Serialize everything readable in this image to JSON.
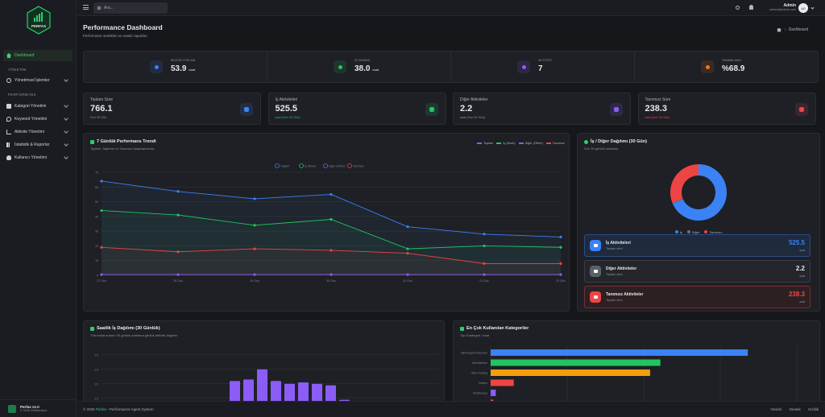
{
  "brand": {
    "logo_text": "PERFAS",
    "version": "Perfas v1.0",
    "copyright": "© 2025 4Dimension"
  },
  "colors": {
    "accent": "#2ecc71",
    "blue": "#3b82f6",
    "green": "#22c55e",
    "purple": "#8b5cf6",
    "red": "#ef4444",
    "orange": "#f59e0b"
  },
  "sidebar": {
    "dashboard": "Dashboard",
    "sections": [
      {
        "label": "YÖNETİM",
        "items": [
          {
            "label": "Yönetimsel İşlemler"
          }
        ]
      },
      {
        "label": "PERFORMANS",
        "items": [
          {
            "label": "Kategori Yönetimi"
          },
          {
            "label": "Keyword Yönetimi"
          },
          {
            "label": "Aktivite Yönetimi"
          },
          {
            "label": "İstatistik & Raporlar"
          },
          {
            "label": "Kullanıcı Yönetimi"
          }
        ]
      }
    ]
  },
  "topbar": {
    "search_placeholder": "Ara...",
    "user_name": "Admin",
    "user_email": "admin@admin.com",
    "avatar": "AD"
  },
  "header": {
    "title": "Performance Dashboard",
    "subtitle": "Performans metrikleri ve analiz raporları",
    "breadcrumb": "Dashboard"
  },
  "kpis": [
    {
      "label": "BUGÜN TOPLAM",
      "value": "53.9",
      "unit": "saat",
      "color": "#3b82f6",
      "icon": "clock-icon"
    },
    {
      "label": "İŞ ZAMANI",
      "value": "38.0",
      "unit": "saat",
      "color": "#22c55e",
      "icon": "check-icon"
    },
    {
      "label": "AKTİVİTE",
      "value": "7",
      "unit": "",
      "color": "#8b5cf6",
      "icon": "pulse-icon"
    },
    {
      "label": "TAMAMLAMA",
      "value": "%68.9",
      "unit": "",
      "color": "#f97316",
      "icon": "percent-icon"
    }
  ],
  "stats": [
    {
      "label": "Toplam Süre",
      "value": "766.1",
      "sub": "Son 30 Gün",
      "sub_color": "#8e949c",
      "color": "#3b82f6",
      "icon": "clock-icon"
    },
    {
      "label": "İş Aktiviteleri",
      "value": "525.5",
      "sub": "saat (Son 30 Gün)",
      "sub_color": "#22c55e",
      "color": "#22c55e",
      "icon": "briefcase-icon"
    },
    {
      "label": "Diğer Aktiviteler",
      "value": "2.2",
      "sub": "saat (Son 30 Gün)",
      "sub_color": "#8e949c",
      "color": "#8b5cf6",
      "icon": "coffee-icon"
    },
    {
      "label": "Tanımsız Süre",
      "value": "238.3",
      "sub": "saat (Son 30 Gün)",
      "sub_color": "#ef4444",
      "color": "#ef4444",
      "icon": "question-icon"
    }
  ],
  "trend": {
    "title": "7 Günlük Performans Trendi",
    "subtitle": "Toplam, Tagleme ve Tanımsız karşılaştırması",
    "chart_data": {
      "type": "line",
      "x": [
        "27 Oca",
        "28 Oca",
        "29 Oca",
        "30 Oca",
        "31 Oca",
        "01 Şub",
        "02 Şub"
      ],
      "ylim": [
        0,
        70
      ],
      "yticks": [
        "0",
        "10",
        "20",
        "30",
        "40",
        "50",
        "60",
        "70"
      ],
      "series": [
        {
          "name": "Toplam",
          "color": "#3b82f6",
          "values": [
            64,
            57,
            52,
            55,
            33,
            28,
            26
          ]
        },
        {
          "name": "İş (Work)",
          "color": "#22c55e",
          "values": [
            44,
            41,
            34,
            38,
            18,
            20,
            19
          ]
        },
        {
          "name": "Diğer (Other)",
          "color": "#8b5cf6",
          "values": [
            0.5,
            0.5,
            0.5,
            0.5,
            0.5,
            0.5,
            0.5
          ]
        },
        {
          "name": "Tanımsız",
          "color": "#ef4444",
          "values": [
            19,
            16,
            18,
            17,
            15,
            8,
            8
          ]
        }
      ]
    }
  },
  "donut": {
    "title": "İş / Diğer Dağılımı (30 Gün)",
    "subtitle": "Son 30 günlük ortalama",
    "chart_data": {
      "type": "pie",
      "labels": [
        "İş",
        "Diğer",
        "Tanımsız"
      ],
      "values": [
        525.5,
        2.2,
        238.3
      ],
      "colors": [
        "#3b82f6",
        "#6b7280",
        "#ef4444"
      ]
    },
    "rows": [
      {
        "title": "İş Aktiviteleri",
        "sub": "Toplam süre",
        "value": "525.5",
        "unit": "saat",
        "color": "#3b82f6",
        "bg": "#1f2a3d",
        "icon": "briefcase-icon"
      },
      {
        "title": "Diğer Aktiviteler",
        "sub": "Toplam süre",
        "value": "2.2",
        "unit": "saat",
        "color": "#e6e8eb",
        "bg": "#24262b",
        "icon": "minus-icon"
      },
      {
        "title": "Tanımsız Aktiviteler",
        "sub": "Toplam süre",
        "value": "238.3",
        "unit": "saat",
        "color": "#ef4444",
        "bg": "#2d2023",
        "icon": "question-icon"
      }
    ]
  },
  "hourly": {
    "title": "Saatlik İş Dağılımı (30 Günlük)",
    "subtitle": "Tüm kullanıcıların 30 günlük ortalama günlük aktivite dağılımı",
    "chart_data": {
      "type": "bar",
      "yticks": [
        "1.0",
        "1.5",
        "2.0",
        "2.5"
      ],
      "ylim": [
        0.8,
        2.8
      ],
      "values": [
        1.6,
        1.65,
        2.0,
        1.6,
        1.5,
        1.55,
        1.5,
        1.45,
        0.95
      ],
      "color": "#8b5cf6"
    }
  },
  "categories": {
    "title": "En Çok Kullanılan Kategoriler",
    "subtitle": "Top 8 kategori / saat",
    "chart_data": {
      "type": "bar",
      "categories": [
        "Bilinmeyen/Unknown",
        "Web/İşletme",
        "Web Hosting",
        "İletişim",
        "Multimedya",
        ""
      ],
      "values": [
        100,
        66,
        62,
        9,
        2,
        1
      ],
      "colors": [
        "#3b82f6",
        "#22c55e",
        "#f59e0b",
        "#ef4444",
        "#8b5cf6",
        "#ec4899"
      ]
    }
  },
  "footer": {
    "copy_a": "© 2026",
    "brand": "Perfas",
    "copy_b": "- Performance Agent System",
    "links": [
      "Yardım",
      "Destek",
      "Gizlilik"
    ]
  }
}
